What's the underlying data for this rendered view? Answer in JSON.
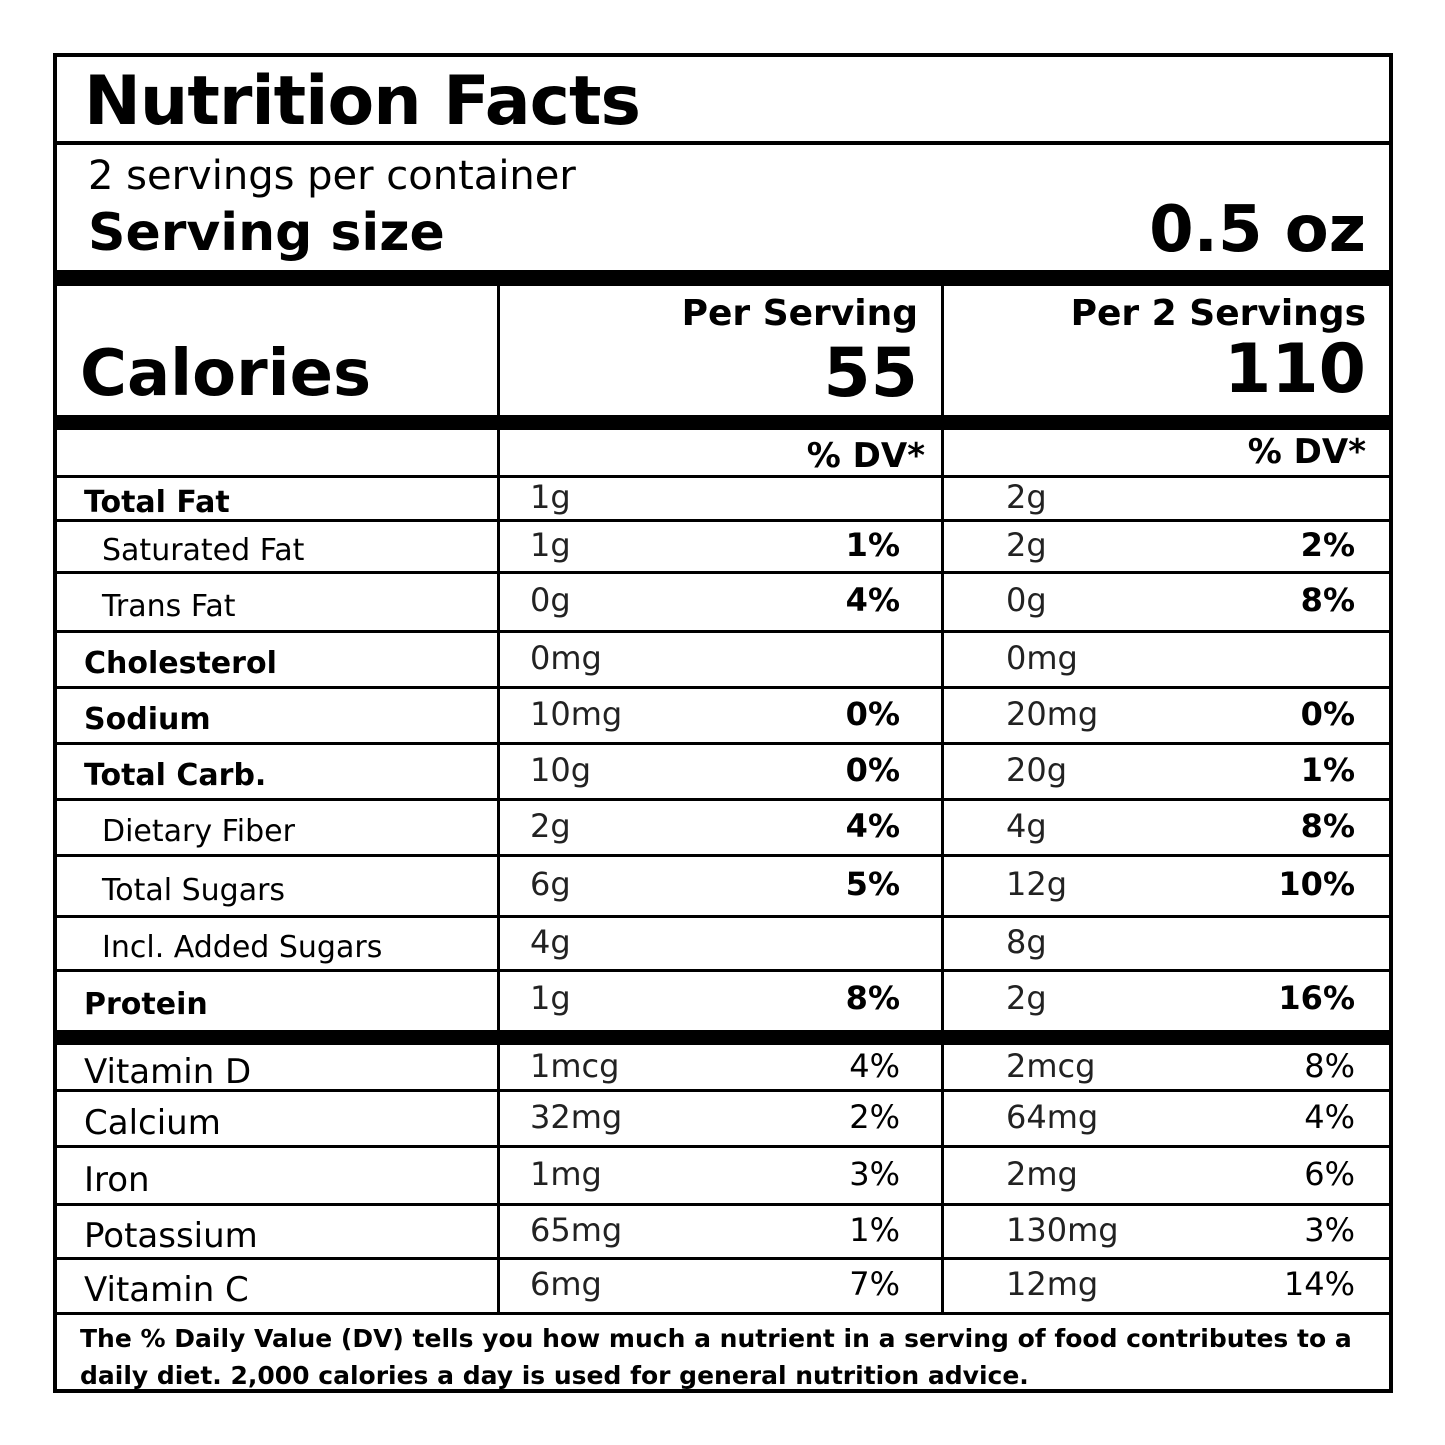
{
  "header": {
    "title": "Nutrition Facts"
  },
  "servings": {
    "per_container": "2 servings per container",
    "size_label": "Serving size",
    "size_value": "0.5 oz"
  },
  "calories": {
    "label": "Calories",
    "columns": [
      {
        "heading": "Per Serving",
        "value": "55"
      },
      {
        "heading": "Per 2 Servings",
        "value": "110"
      }
    ]
  },
  "dv_header": [
    "% DV*",
    "% DV*"
  ],
  "nutrients": [
    {
      "name": "Total Fat",
      "bold": true,
      "indent": false,
      "values": [
        {
          "amount": "1g"
        },
        {
          "amount": "2g"
        }
      ]
    },
    {
      "name": "Saturated Fat",
      "bold": false,
      "indent": true,
      "values": [
        {
          "amount": "1g",
          "dv": "1%"
        },
        {
          "amount": "2g",
          "dv": "2%"
        }
      ]
    },
    {
      "name": "Trans Fat",
      "bold": false,
      "indent": true,
      "values": [
        {
          "amount": "0g",
          "dv": "4%"
        },
        {
          "amount": "0g",
          "dv": "8%"
        }
      ]
    },
    {
      "name": "Cholesterol",
      "bold": true,
      "indent": false,
      "values": [
        {
          "amount": "0mg"
        },
        {
          "amount": "0mg"
        }
      ]
    },
    {
      "name": "Sodium",
      "bold": true,
      "indent": false,
      "values": [
        {
          "amount": "10mg",
          "dv": "0%"
        },
        {
          "amount": "20mg",
          "dv": "0%"
        }
      ]
    },
    {
      "name": "Total Carb.",
      "bold": true,
      "indent": false,
      "values": [
        {
          "amount": "10g",
          "dv": "0%"
        },
        {
          "amount": "20g",
          "dv": "1%"
        }
      ]
    },
    {
      "name": "Dietary Fiber",
      "bold": false,
      "indent": true,
      "values": [
        {
          "amount": "2g",
          "dv": "4%"
        },
        {
          "amount": "4g",
          "dv": "8%"
        }
      ]
    },
    {
      "name": "Total Sugars",
      "bold": false,
      "indent": true,
      "values": [
        {
          "amount": "6g",
          "dv": "5%"
        },
        {
          "amount": "12g",
          "dv": "10%"
        }
      ]
    },
    {
      "name": "Incl. Added Sugars",
      "bold": false,
      "indent": true,
      "values": [
        {
          "amount": "4g"
        },
        {
          "amount": "8g"
        }
      ]
    },
    {
      "name": "Protein",
      "bold": true,
      "indent": false,
      "values": [
        {
          "amount": "1g",
          "dv": "8%"
        },
        {
          "amount": "2g",
          "dv": "16%"
        }
      ]
    }
  ],
  "vitamins": [
    {
      "name": "Vitamin D",
      "values": [
        {
          "amount": "1mcg",
          "dv": "4%"
        },
        {
          "amount": "2mcg",
          "dv": "8%"
        }
      ]
    },
    {
      "name": "Calcium",
      "values": [
        {
          "amount": "32mg",
          "dv": "2%"
        },
        {
          "amount": "64mg",
          "dv": "4%"
        }
      ]
    },
    {
      "name": "Iron",
      "values": [
        {
          "amount": "1mg",
          "dv": "3%"
        },
        {
          "amount": "2mg",
          "dv": "6%"
        }
      ]
    },
    {
      "name": "Potassium",
      "values": [
        {
          "amount": "65mg",
          "dv": "1%"
        },
        {
          "amount": "130mg",
          "dv": "3%"
        }
      ]
    },
    {
      "name": "Vitamin C",
      "values": [
        {
          "amount": "6mg",
          "dv": "7%"
        },
        {
          "amount": "12mg",
          "dv": "14%"
        }
      ]
    }
  ],
  "footnote": "The % Daily Value (DV) tells you how much a nutrient in a serving of food contributes to a daily diet. 2,000 calories a day is used for general nutrition advice."
}
